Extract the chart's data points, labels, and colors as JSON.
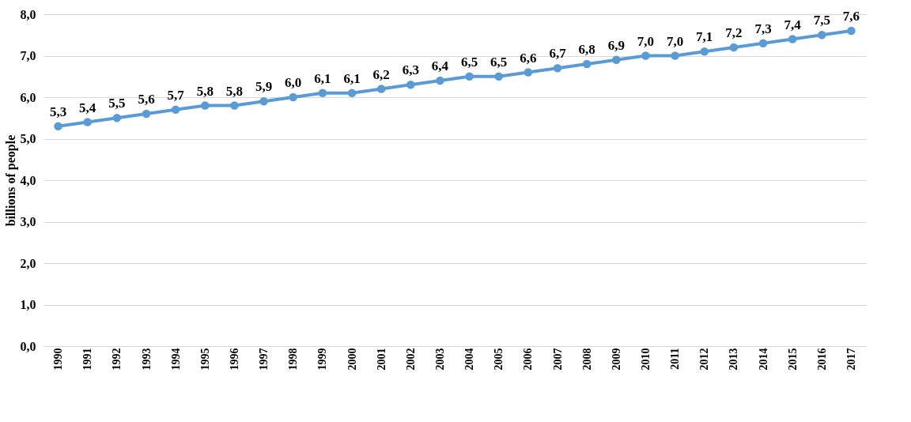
{
  "chart_data": {
    "type": "line",
    "ylabel": "billions of people",
    "categories": [
      "1990",
      "1991",
      "1992",
      "1993",
      "1994",
      "1995",
      "1996",
      "1997",
      "1998",
      "1999",
      "2000",
      "2001",
      "2002",
      "2003",
      "2004",
      "2005",
      "2006",
      "2007",
      "2008",
      "2009",
      "2010",
      "2011",
      "2012",
      "2013",
      "2014",
      "2015",
      "2016",
      "2017"
    ],
    "series": [
      {
        "color": "#5b9bd5",
        "values": [
          5.3,
          5.4,
          5.5,
          5.6,
          5.7,
          5.8,
          5.8,
          5.9,
          6.0,
          6.1,
          6.1,
          6.2,
          6.3,
          6.4,
          6.5,
          6.5,
          6.6,
          6.7,
          6.8,
          6.9,
          7.0,
          7.0,
          7.1,
          7.2,
          7.3,
          7.4,
          7.5,
          7.6
        ],
        "value_labels": [
          "5,3",
          "5,4",
          "5,5",
          "5,6",
          "5,7",
          "5,8",
          "5,8",
          "5,9",
          "6,0",
          "6,1",
          "6,1",
          "6,2",
          "6,3",
          "6,4",
          "6,5",
          "6,5",
          "6,6",
          "6,7",
          "6,8",
          "6,9",
          "7,0",
          "7,0",
          "7,1",
          "7,2",
          "7,3",
          "7,4",
          "7,5",
          "7,6"
        ]
      }
    ],
    "ylim": [
      0,
      8
    ],
    "yticks": [
      {
        "value": 0,
        "label": "0,0"
      },
      {
        "value": 1,
        "label": "1,0"
      },
      {
        "value": 2,
        "label": "2,0"
      },
      {
        "value": 3,
        "label": "3,0"
      },
      {
        "value": 4,
        "label": "4,0"
      },
      {
        "value": 5,
        "label": "5,0"
      },
      {
        "value": 6,
        "label": "6,0"
      },
      {
        "value": 7,
        "label": "7,0"
      },
      {
        "value": 8,
        "label": "8,0"
      }
    ],
    "grid": "y",
    "legend": false,
    "marker": "circle",
    "line_style": "solid"
  }
}
